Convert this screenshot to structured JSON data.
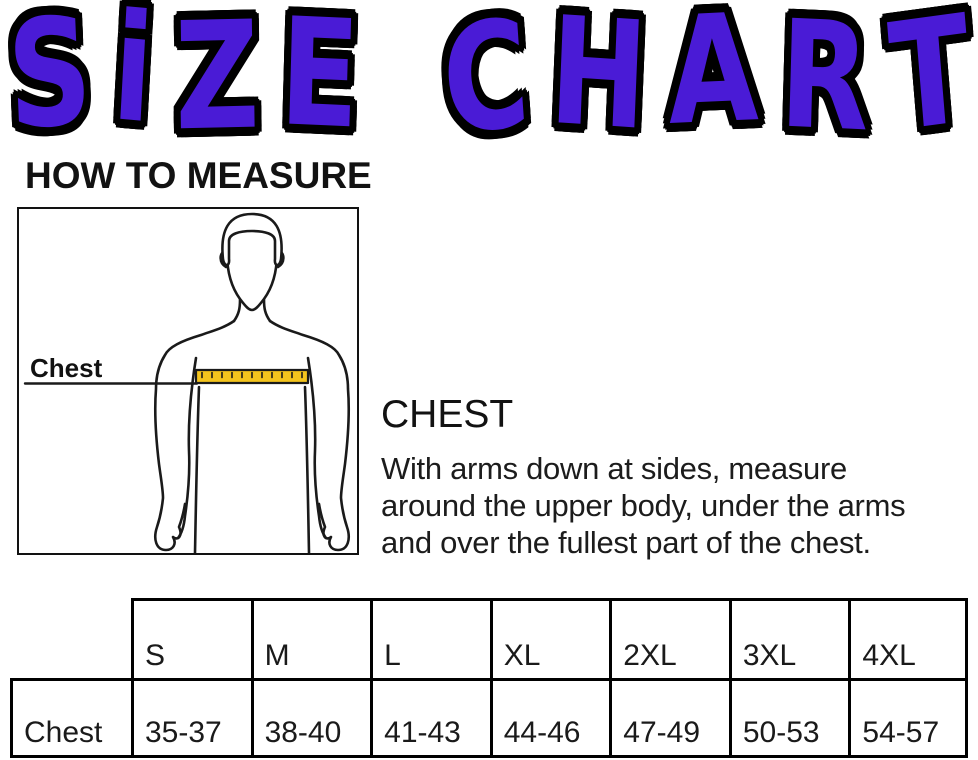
{
  "title": "SiZE CHART",
  "colors": {
    "title_purple": "#4A1BD6",
    "tape_yellow": "#F4C41D",
    "ink": "#121212"
  },
  "how_to_measure": {
    "heading": "HOW TO MEASURE"
  },
  "figure": {
    "label": "Chest"
  },
  "chest_info": {
    "heading": "CHEST",
    "lines": [
      "With arms down at sides, measure",
      "around the upper body, under the arms",
      "and over the fullest part of the chest."
    ]
  },
  "size_table": {
    "row_label": "Chest",
    "sizes": [
      "S",
      "M",
      "L",
      "XL",
      "2XL",
      "3XL",
      "4XL"
    ],
    "chest_ranges": [
      "35-37",
      "38-40",
      "41-43",
      "44-46",
      "47-49",
      "50-53",
      "54-57"
    ]
  },
  "chart_data": {
    "type": "table",
    "title": "SiZE CHART",
    "columns": [
      "",
      "S",
      "M",
      "L",
      "XL",
      "2XL",
      "3XL",
      "4XL"
    ],
    "rows": [
      [
        "Chest",
        "35-37",
        "38-40",
        "41-43",
        "44-46",
        "47-49",
        "50-53",
        "54-57"
      ]
    ]
  }
}
